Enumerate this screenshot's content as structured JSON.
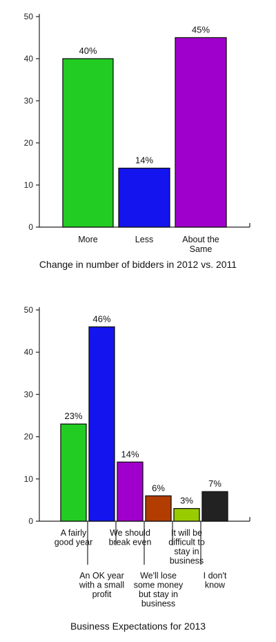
{
  "chart_data": [
    {
      "type": "bar",
      "title": "Change in number of bidders in 2012 vs. 2011",
      "xlabel": "",
      "ylabel": "",
      "ylim": [
        0,
        50
      ],
      "yticks": [
        "0",
        "10",
        "20",
        "30",
        "40",
        "50"
      ],
      "grid": false,
      "categories": [
        "More",
        "Less",
        "About the Same"
      ],
      "category_lines": [
        [
          "More"
        ],
        [
          "Less"
        ],
        [
          "About the",
          "Same"
        ]
      ],
      "values": [
        40,
        14,
        45
      ],
      "value_labels": [
        "40%",
        "14%",
        "45%"
      ],
      "colors": [
        "#22cc22",
        "#1414ee",
        "#a000cc"
      ]
    },
    {
      "type": "bar",
      "title": "Business Expectations for 2013",
      "xlabel": "",
      "ylabel": "",
      "ylim": [
        0,
        50
      ],
      "yticks": [
        "0",
        "10",
        "20",
        "30",
        "40",
        "50"
      ],
      "grid": false,
      "categories": [
        "A fairly good year",
        "An OK year with a small profit",
        "We should break even",
        "We'll lose some money but stay in business",
        "It will be difficult to stay in business",
        "I don't know"
      ],
      "category_lines": [
        [
          "A fairly",
          "good year"
        ],
        [
          "An OK year",
          "with a small",
          "profit"
        ],
        [
          "We should",
          "break even"
        ],
        [
          "We'll lose",
          "some money",
          "but stay in",
          "business"
        ],
        [
          "It will be",
          "difficult to",
          "stay in",
          "business"
        ],
        [
          "I don't",
          "know"
        ]
      ],
      "values": [
        23,
        46,
        14,
        6,
        3,
        7
      ],
      "value_labels": [
        "23%",
        "46%",
        "14%",
        "6%",
        "3%",
        "7%"
      ],
      "colors": [
        "#22cc22",
        "#1414ee",
        "#a000cc",
        "#b33c00",
        "#99cc00",
        "#222222"
      ]
    }
  ]
}
